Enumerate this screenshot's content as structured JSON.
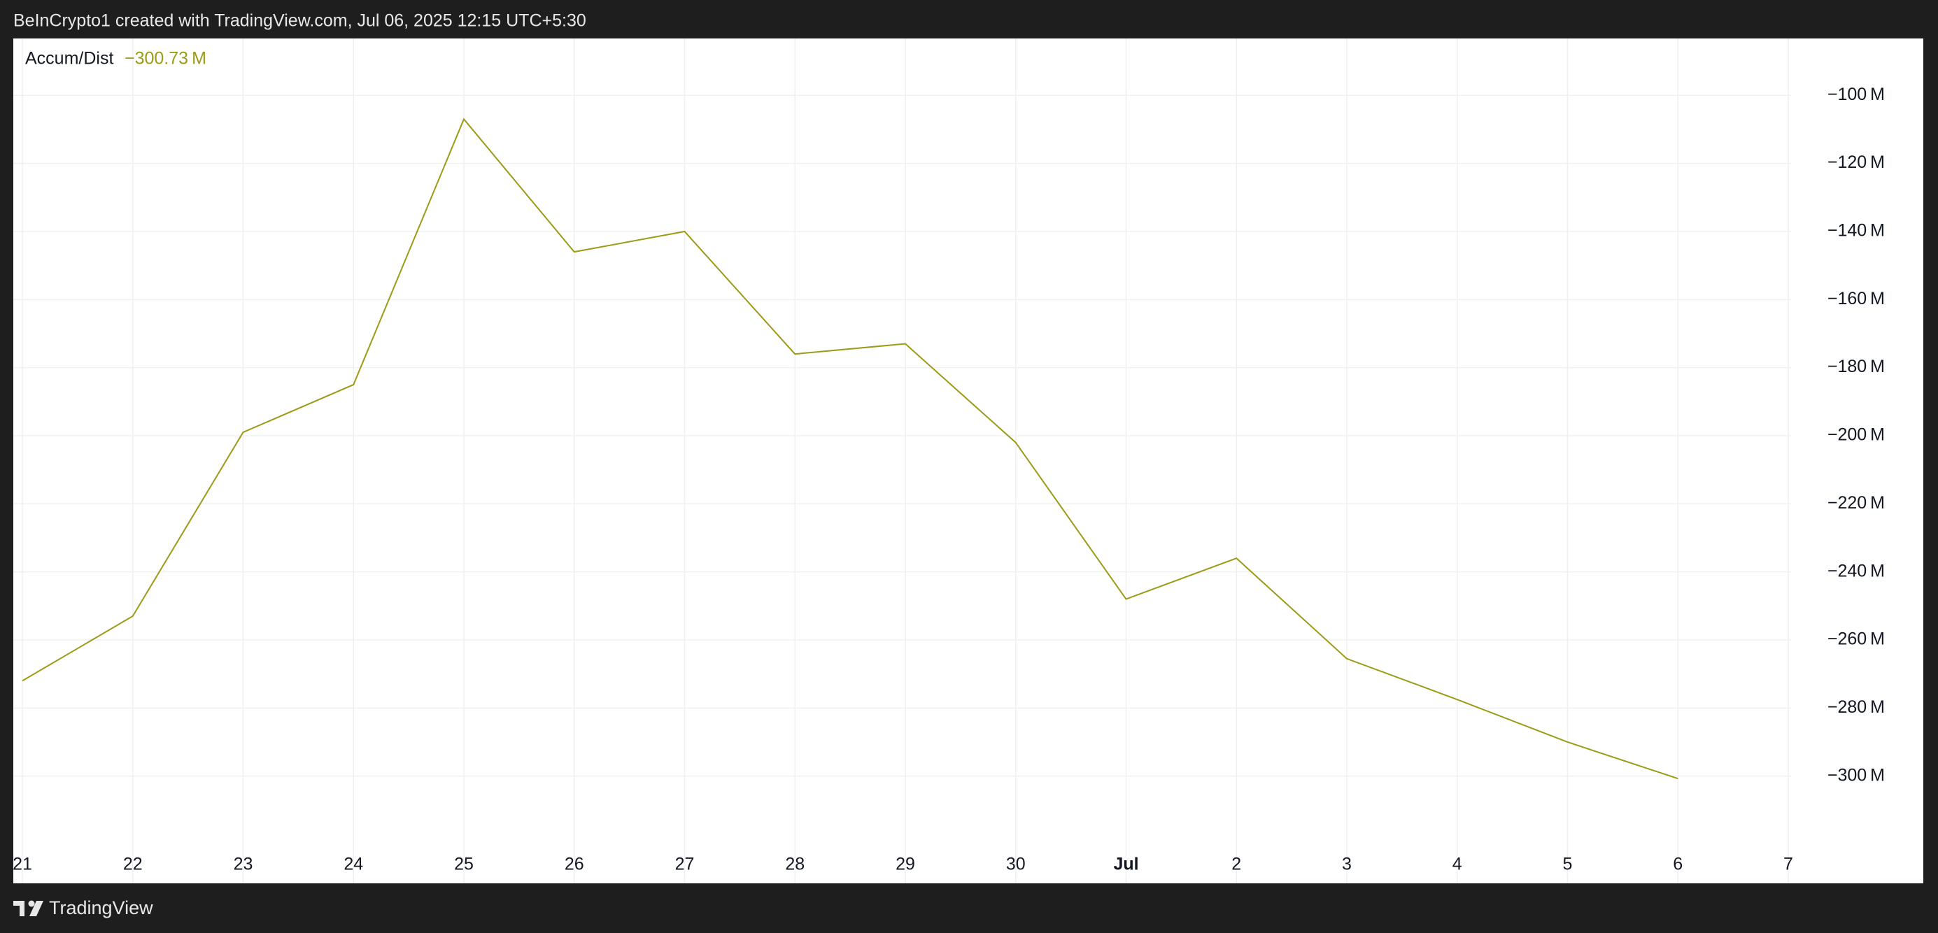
{
  "header": {
    "text": "BeInCrypto1 created with TradingView.com, Jul 06, 2025 12:15 UTC+5:30"
  },
  "footer": {
    "brand": "TradingView"
  },
  "chart_data": {
    "type": "line",
    "categories": [
      "21",
      "22",
      "23",
      "24",
      "25",
      "26",
      "27",
      "28",
      "29",
      "30",
      "Jul",
      "2",
      "3",
      "4",
      "5",
      "6",
      "7"
    ],
    "series": [
      {
        "name": "Accum/Dist",
        "color": "#9b9b17",
        "legend_value": "−300.73 M",
        "values": [
          -272,
          -253,
          -199,
          -185,
          -107,
          -146,
          -140,
          -176,
          -173,
          -202,
          -248,
          -236,
          -265.5,
          -277.5,
          -290,
          -300.73,
          null
        ]
      }
    ],
    "ylim": [
      -320,
      -83.3
    ],
    "yticks": [
      {
        "value": -100,
        "label": "−100 M"
      },
      {
        "value": -120,
        "label": "−120 M"
      },
      {
        "value": -140,
        "label": "−140 M"
      },
      {
        "value": -160,
        "label": "−160 M"
      },
      {
        "value": -180,
        "label": "−180 M"
      },
      {
        "value": -200,
        "label": "−200 M"
      },
      {
        "value": -220,
        "label": "−220 M"
      },
      {
        "value": -240,
        "label": "−240 M"
      },
      {
        "value": -260,
        "label": "−260 M"
      },
      {
        "value": -280,
        "label": "−280 M"
      },
      {
        "value": -300,
        "label": "−300 M"
      }
    ],
    "grid": true
  }
}
